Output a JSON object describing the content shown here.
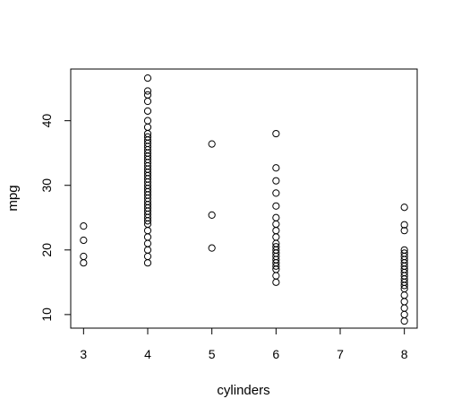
{
  "chart_data": {
    "type": "scatter",
    "title": "",
    "xlabel": "cylinders",
    "ylabel": "mpg",
    "xlim": [
      2.8,
      8.2
    ],
    "ylim": [
      7.9,
      48.0
    ],
    "x_ticks": [
      3,
      4,
      5,
      6,
      7,
      8
    ],
    "y_ticks": [
      10,
      20,
      30,
      40
    ],
    "grid": false,
    "marker": "open-circle",
    "series": [
      {
        "points": [
          [
            3,
            18.0
          ],
          [
            3,
            19.0
          ],
          [
            3,
            21.5
          ],
          [
            3,
            23.7
          ],
          [
            4,
            18.0
          ],
          [
            4,
            19.0
          ],
          [
            4,
            20.0
          ],
          [
            4,
            21.0
          ],
          [
            4,
            22.0
          ],
          [
            4,
            23.0
          ],
          [
            4,
            24.0
          ],
          [
            4,
            24.5
          ],
          [
            4,
            25.0
          ],
          [
            4,
            25.5
          ],
          [
            4,
            26.0
          ],
          [
            4,
            26.5
          ],
          [
            4,
            27.0
          ],
          [
            4,
            27.5
          ],
          [
            4,
            28.0
          ],
          [
            4,
            28.5
          ],
          [
            4,
            29.0
          ],
          [
            4,
            29.5
          ],
          [
            4,
            30.0
          ],
          [
            4,
            30.5
          ],
          [
            4,
            31.0
          ],
          [
            4,
            31.5
          ],
          [
            4,
            32.0
          ],
          [
            4,
            32.5
          ],
          [
            4,
            33.0
          ],
          [
            4,
            33.5
          ],
          [
            4,
            34.0
          ],
          [
            4,
            34.5
          ],
          [
            4,
            35.0
          ],
          [
            4,
            35.5
          ],
          [
            4,
            36.0
          ],
          [
            4,
            36.5
          ],
          [
            4,
            37.0
          ],
          [
            4,
            37.5
          ],
          [
            4,
            38.0
          ],
          [
            4,
            39.0
          ],
          [
            4,
            40.0
          ],
          [
            4,
            41.5
          ],
          [
            4,
            43.0
          ],
          [
            4,
            44.0
          ],
          [
            4,
            44.6
          ],
          [
            4,
            46.6
          ],
          [
            5,
            20.3
          ],
          [
            5,
            25.4
          ],
          [
            5,
            36.4
          ],
          [
            6,
            15.0
          ],
          [
            6,
            16.0
          ],
          [
            6,
            17.0
          ],
          [
            6,
            17.5
          ],
          [
            6,
            18.0
          ],
          [
            6,
            18.5
          ],
          [
            6,
            19.0
          ],
          [
            6,
            19.5
          ],
          [
            6,
            20.0
          ],
          [
            6,
            20.5
          ],
          [
            6,
            21.0
          ],
          [
            6,
            22.0
          ],
          [
            6,
            23.0
          ],
          [
            6,
            24.0
          ],
          [
            6,
            25.0
          ],
          [
            6,
            26.8
          ],
          [
            6,
            28.8
          ],
          [
            6,
            30.7
          ],
          [
            6,
            32.7
          ],
          [
            6,
            38.0
          ],
          [
            8,
            9.0
          ],
          [
            8,
            10.0
          ],
          [
            8,
            11.0
          ],
          [
            8,
            12.0
          ],
          [
            8,
            13.0
          ],
          [
            8,
            14.0
          ],
          [
            8,
            14.5
          ],
          [
            8,
            15.0
          ],
          [
            8,
            15.5
          ],
          [
            8,
            16.0
          ],
          [
            8,
            16.5
          ],
          [
            8,
            17.0
          ],
          [
            8,
            17.5
          ],
          [
            8,
            18.0
          ],
          [
            8,
            18.5
          ],
          [
            8,
            19.0
          ],
          [
            8,
            19.5
          ],
          [
            8,
            20.0
          ],
          [
            8,
            23.0
          ],
          [
            8,
            23.9
          ],
          [
            8,
            26.6
          ]
        ]
      }
    ]
  }
}
